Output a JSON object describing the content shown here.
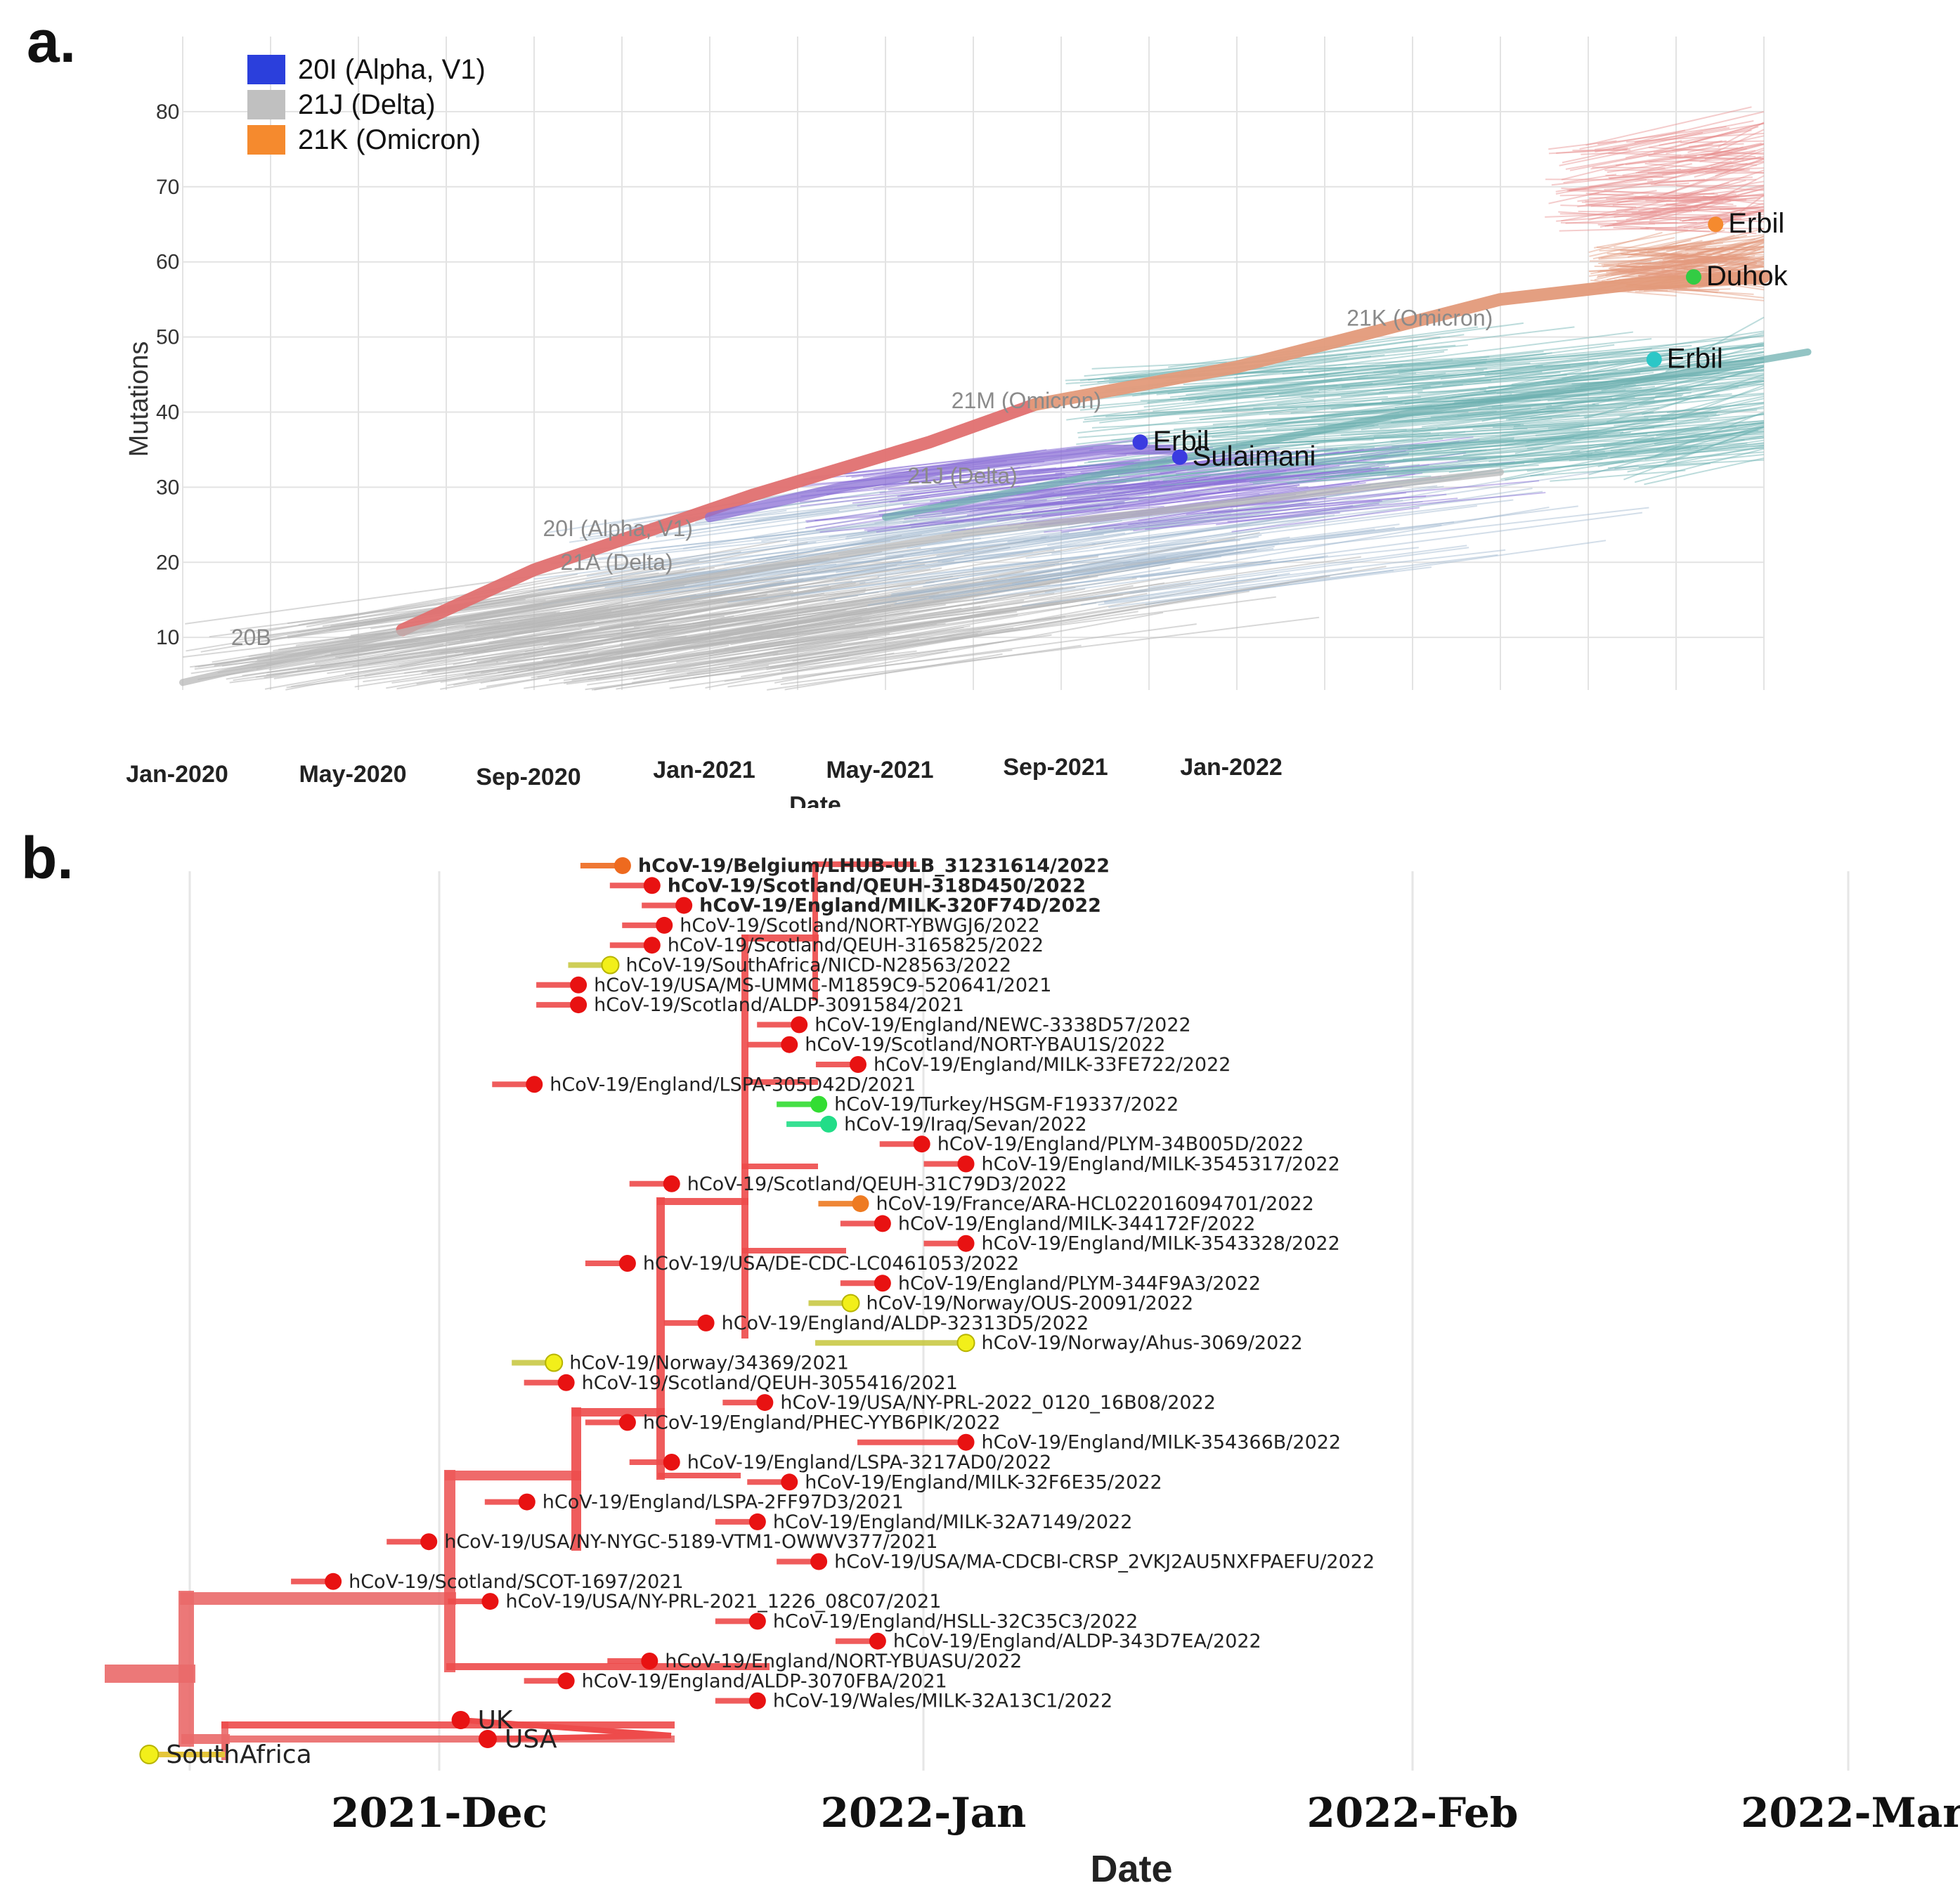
{
  "chart_data": [
    {
      "type": "line",
      "panel_label": "a.",
      "title": "",
      "xlabel": "Date",
      "ylabel": "Mutations",
      "x_ticks": [
        "Jan-2020",
        "May-2020",
        "Sep-2020",
        "Jan-2021",
        "May-2021",
        "Sep-2021",
        "Jan-2022"
      ],
      "y_ticks": [
        10,
        20,
        30,
        40,
        50,
        60,
        70,
        80
      ],
      "ylim": [
        3,
        90
      ],
      "legend": [
        {
          "label": "20I (Alpha, V1)",
          "color": "#2b3fdc"
        },
        {
          "label": "21J (Delta)",
          "color": "#c0c0c0"
        },
        {
          "label": "21K (Omicron)",
          "color": "#f58a2e"
        }
      ],
      "clade_labels": [
        {
          "text": "20B",
          "x": 1.1,
          "y": 9
        },
        {
          "text": "20I (Alpha, V1)",
          "x": 8.2,
          "y": 23.5
        },
        {
          "text": "21A (Delta)",
          "x": 8.6,
          "y": 19
        },
        {
          "text": "21J (Delta)",
          "x": 16.5,
          "y": 30.5
        },
        {
          "text": "21M (Omicron)",
          "x": 17.5,
          "y": 40.5
        },
        {
          "text": "21K (Omicron)",
          "x": 26.5,
          "y": 51.5
        }
      ],
      "series": [
        {
          "name": "21M (Omicron) backbone",
          "color": "#e07070",
          "x": [
            5,
            8,
            13,
            17,
            19.4
          ],
          "y": [
            11,
            19,
            29,
            36,
            41
          ]
        },
        {
          "name": "21K (Omicron) backbone",
          "color": "#e39a7a",
          "x": [
            19.4,
            24,
            28,
            30,
            33,
            36
          ],
          "y": [
            41,
            46,
            52,
            55,
            57,
            58
          ]
        },
        {
          "name": "20I (Alpha, V1)",
          "color": "#8b6fd6",
          "x": [
            12,
            15,
            18,
            21,
            22.5
          ],
          "y": [
            26,
            30,
            33,
            35,
            35
          ]
        },
        {
          "name": "21J (Delta)",
          "color": "#6fb0b0",
          "x": [
            16,
            22,
            28,
            34,
            37
          ],
          "y": [
            26,
            33,
            40,
            45,
            48
          ]
        },
        {
          "name": "21A (Delta)",
          "color": "#b8b8b8",
          "x": [
            0,
            6,
            12,
            18,
            24,
            30
          ],
          "y": [
            4,
            12,
            18,
            24,
            28,
            32
          ]
        }
      ],
      "samples": [
        {
          "label": "Erbil",
          "x": 21.8,
          "y": 36,
          "color": "#3b3be0"
        },
        {
          "label": "Sulaimani",
          "x": 22.7,
          "y": 34,
          "color": "#3b3be0"
        },
        {
          "label": "Erbil",
          "x": 33.5,
          "y": 47,
          "color": "#2cc7c7"
        },
        {
          "label": "Duhok",
          "x": 34.4,
          "y": 58,
          "color": "#33cc44"
        },
        {
          "label": "Erbil",
          "x": 34.9,
          "y": 65,
          "color": "#f58a2e"
        }
      ]
    },
    {
      "type": "tree",
      "panel_label": "b.",
      "title": "",
      "xlabel": "Date",
      "x_ticks": [
        "2021-Dec",
        "2022-Jan",
        "2022-Feb",
        "2022-Mar"
      ],
      "tips": [
        {
          "label": "hCoV-19/Belgium/LHUB-ULB_31231614/2022",
          "date": 40.8,
          "color": "#ee6a1f",
          "bold": true
        },
        {
          "label": "hCoV-19/Scotland/QEUH-318D450/2022",
          "date": 42,
          "color": "#e81212",
          "bold": true
        },
        {
          "label": "hCoV-19/England/MILK-320F74D/2022",
          "date": 43.3,
          "color": "#e81212",
          "bold": true
        },
        {
          "label": "hCoV-19/Scotland/NORT-YBWGJ6/2022",
          "date": 42.5,
          "color": "#e81212",
          "bold": false
        },
        {
          "label": "hCoV-19/Scotland/QEUH-3165825/2022",
          "date": 42,
          "color": "#e81212",
          "bold": false
        },
        {
          "label": "hCoV-19/SouthAfrica/NICD-N28563/2022",
          "date": 40.3,
          "color": "#f2ef1a",
          "bold": false
        },
        {
          "label": "hCoV-19/USA/MS-UMMC-M1859C9-520641/2021",
          "date": 39,
          "color": "#e81212",
          "bold": false
        },
        {
          "label": "hCoV-19/Scotland/ALDP-3091584/2021",
          "date": 39,
          "color": "#e81212",
          "bold": false
        },
        {
          "label": "hCoV-19/England/NEWC-3338D57/2022",
          "date": 48,
          "color": "#e81212",
          "bold": false
        },
        {
          "label": "hCoV-19/Scotland/NORT-YBAU1S/2022",
          "date": 47.6,
          "color": "#e81212",
          "bold": false
        },
        {
          "label": "hCoV-19/England/MILK-33FE722/2022",
          "date": 50.4,
          "color": "#e81212",
          "bold": false
        },
        {
          "label": "hCoV-19/England/LSPA-305D42D/2021",
          "date": 37.2,
          "color": "#e81212",
          "bold": false
        },
        {
          "label": "hCoV-19/Turkey/HSGM-F19337/2022",
          "date": 48.8,
          "color": "#33dd33",
          "bold": false
        },
        {
          "label": "hCoV-19/Iraq/Sevan/2022",
          "date": 49.2,
          "color": "#22dd88",
          "bold": false,
          "highlight": true
        },
        {
          "label": "hCoV-19/England/PLYM-34B005D/2022",
          "date": 53,
          "color": "#e81212",
          "bold": false
        },
        {
          "label": "hCoV-19/England/MILK-3545317/2022",
          "date": 54.8,
          "color": "#e81212",
          "bold": false
        },
        {
          "label": "hCoV-19/Scotland/QEUH-31C79D3/2022",
          "date": 42.8,
          "color": "#e81212",
          "bold": false
        },
        {
          "label": "hCoV-19/France/ARA-HCL022016094701/2022",
          "date": 50.5,
          "color": "#ee7b22",
          "bold": false
        },
        {
          "label": "hCoV-19/England/MILK-344172F/2022",
          "date": 51.4,
          "color": "#e81212",
          "bold": false
        },
        {
          "label": "hCoV-19/England/MILK-3543328/2022",
          "date": 54.8,
          "color": "#e81212",
          "bold": false
        },
        {
          "label": "hCoV-19/USA/DE-CDC-LC0461053/2022",
          "date": 41,
          "color": "#e81212",
          "bold": false
        },
        {
          "label": "hCoV-19/England/PLYM-344F9A3/2022",
          "date": 51.4,
          "color": "#e81212",
          "bold": false
        },
        {
          "label": "hCoV-19/Norway/OUS-20091/2022",
          "date": 50.1,
          "color": "#f2ef1a",
          "bold": false
        },
        {
          "label": "hCoV-19/England/ALDP-32313D5/2022",
          "date": 44.2,
          "color": "#e81212",
          "bold": false
        },
        {
          "label": "hCoV-19/Norway/Ahus-3069/2022",
          "date": 54.8,
          "color": "#f2ef1a",
          "bold": false
        },
        {
          "label": "hCoV-19/Norway/34369/2021",
          "date": 38,
          "color": "#f2ef1a",
          "bold": false
        },
        {
          "label": "hCoV-19/Scotland/QEUH-3055416/2021",
          "date": 38.5,
          "color": "#e81212",
          "bold": false
        },
        {
          "label": "hCoV-19/USA/NY-PRL-2022_0120_16B08/2022",
          "date": 46.6,
          "color": "#e81212",
          "bold": false
        },
        {
          "label": "hCoV-19/England/PHEC-YYB6PIK/2022",
          "date": 41,
          "color": "#e81212",
          "bold": false
        },
        {
          "label": "hCoV-19/England/MILK-354366B/2022",
          "date": 54.8,
          "color": "#e81212",
          "bold": false
        },
        {
          "label": "hCoV-19/England/LSPA-3217AD0/2022",
          "date": 42.8,
          "color": "#e81212",
          "bold": false
        },
        {
          "label": "hCoV-19/England/MILK-32F6E35/2022",
          "date": 47.6,
          "color": "#e81212",
          "bold": false
        },
        {
          "label": "hCoV-19/England/LSPA-2FF97D3/2021",
          "date": 36.9,
          "color": "#e81212",
          "bold": false
        },
        {
          "label": "hCoV-19/England/MILK-32A7149/2022",
          "date": 46.3,
          "color": "#e81212",
          "bold": false
        },
        {
          "label": "hCoV-19/USA/NY-NYGC-5189-VTM1-OWWV377/2021",
          "date": 32.9,
          "color": "#e81212",
          "bold": false
        },
        {
          "label": "hCoV-19/USA/MA-CDCBI-CRSP_2VKJ2AU5NXFPAEFU/2022",
          "date": 48.8,
          "color": "#e81212",
          "bold": false
        },
        {
          "label": "hCoV-19/Scotland/SCOT-1697/2021",
          "date": 29,
          "color": "#e81212",
          "bold": false
        },
        {
          "label": "hCoV-19/USA/NY-PRL-2021_1226_08C07/2021",
          "date": 35.4,
          "color": "#e81212",
          "bold": false
        },
        {
          "label": "hCoV-19/England/HSLL-32C35C3/2022",
          "date": 46.3,
          "color": "#e81212",
          "bold": false
        },
        {
          "label": "hCoV-19/England/ALDP-343D7EA/2022",
          "date": 51.2,
          "color": "#e81212",
          "bold": false
        },
        {
          "label": "hCoV-19/England/NORT-YBUASU/2022",
          "date": 41.9,
          "color": "#e81212",
          "bold": false
        },
        {
          "label": "hCoV-19/England/ALDP-3070FBA/2021",
          "date": 38.5,
          "color": "#e81212",
          "bold": false
        },
        {
          "label": "hCoV-19/Wales/MILK-32A13C1/2022",
          "date": 46.3,
          "color": "#e81212",
          "bold": false
        }
      ],
      "outgroup_tips": [
        {
          "label": "UK",
          "date": 34.2,
          "color": "#e81212"
        },
        {
          "label": "USA",
          "date": 35.3,
          "color": "#e81212"
        },
        {
          "label": "SouthAfrica",
          "date": 21.5,
          "color": "#f2ef1a"
        }
      ]
    }
  ]
}
